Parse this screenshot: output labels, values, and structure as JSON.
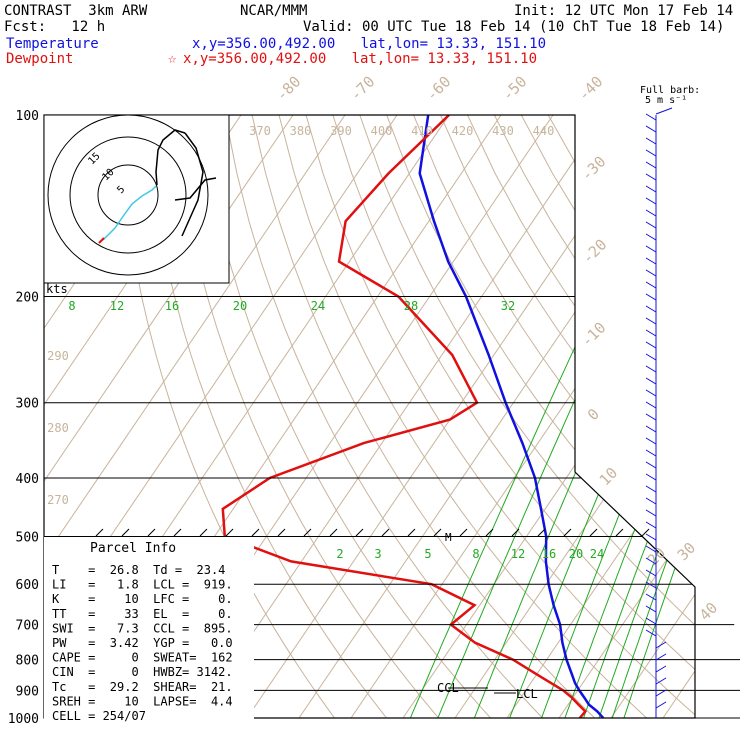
{
  "header": {
    "title_left": "CONTRAST  3km ARW",
    "title_center": "NCAR/MMM",
    "init": "Init: 12 UTC Mon 17 Feb 14",
    "fcst": "Fcst:   12 h",
    "valid": "Valid: 00 UTC Tue 18 Feb 14 (10 ChT Tue 18 Feb 14)",
    "temperature_label": "Temperature",
    "temperature_loc": "x,y=356.00,492.00   lat,lon= 13.33, 151.10",
    "dewpoint_label": "Dewpoint",
    "dewpoint_loc": "x,y=356.00,492.00   lat,lon= 13.33, 151.10",
    "barb_legend_title": "Full barb:",
    "barb_legend_value": "5 m s⁻¹",
    "hodograph_units": "kts"
  },
  "colors": {
    "temperature": "#1010e0",
    "dewpoint": "#e01010",
    "mixing_ratio": "#22aa22",
    "isotherm": "#c8b49c",
    "frame": "#000000",
    "hodo_path": "#40c8e8"
  },
  "chart_data": {
    "type": "line",
    "chart_kind": "skew-T log-p sounding",
    "y_axis": {
      "scale": "log",
      "unit": "hPa",
      "range": [
        1000,
        100
      ],
      "ticks": [
        "100",
        "200",
        "300",
        "400",
        "500",
        "600",
        "700",
        "800",
        "900",
        "1000"
      ]
    },
    "isotherm_labels": [
      "-80",
      "-70",
      "-60",
      "-50",
      "-40",
      "-30",
      "-20",
      "-10",
      "0",
      "10",
      "20",
      "30",
      "40"
    ],
    "theta_labels_top": [
      "370",
      "380",
      "390",
      "400",
      "410",
      "420",
      "430",
      "440"
    ],
    "theta_labels_left": [
      "290",
      "280",
      "270"
    ],
    "mixing_ratio_labels_upper": [
      "8",
      "12",
      "16",
      "20",
      "24",
      "28",
      "32"
    ],
    "mixing_ratio_labels_lower": [
      "2",
      "3",
      "5",
      "8",
      "12",
      "16",
      "20",
      "24"
    ],
    "series": [
      {
        "name": "Temperature",
        "profile": [
          {
            "p": 1000,
            "t": 28.5
          },
          {
            "p": 975,
            "t": 26.5
          },
          {
            "p": 950,
            "t": 24.0
          },
          {
            "p": 925,
            "t": 22.2
          },
          {
            "p": 900,
            "t": 20.3
          },
          {
            "p": 875,
            "t": 18.5
          },
          {
            "p": 850,
            "t": 17.0
          },
          {
            "p": 800,
            "t": 13.8
          },
          {
            "p": 750,
            "t": 10.8
          },
          {
            "p": 700,
            "t": 8.0
          },
          {
            "p": 650,
            "t": 4.2
          },
          {
            "p": 600,
            "t": 0.5
          },
          {
            "p": 550,
            "t": -3.0
          },
          {
            "p": 500,
            "t": -6.2
          },
          {
            "p": 450,
            "t": -10.8
          },
          {
            "p": 400,
            "t": -16.0
          },
          {
            "p": 350,
            "t": -23.0
          },
          {
            "p": 300,
            "t": -31.5
          },
          {
            "p": 250,
            "t": -41.0
          },
          {
            "p": 200,
            "t": -53.0
          },
          {
            "p": 175,
            "t": -61.0
          },
          {
            "p": 150,
            "t": -69.0
          },
          {
            "p": 125,
            "t": -78.0
          },
          {
            "p": 100,
            "t": -84.0
          }
        ]
      },
      {
        "name": "Dewpoint",
        "profile": [
          {
            "p": 1000,
            "t": 24.0
          },
          {
            "p": 975,
            "t": 24.2
          },
          {
            "p": 950,
            "t": 22.0
          },
          {
            "p": 925,
            "t": 19.8
          },
          {
            "p": 900,
            "t": 17.2
          },
          {
            "p": 850,
            "t": 10.5
          },
          {
            "p": 800,
            "t": 3.5
          },
          {
            "p": 750,
            "t": -6.0
          },
          {
            "p": 700,
            "t": -13.0
          },
          {
            "p": 650,
            "t": -11.0
          },
          {
            "p": 600,
            "t": -22.0
          },
          {
            "p": 550,
            "t": -52.0
          },
          {
            "p": 500,
            "t": -68.0
          },
          {
            "p": 450,
            "t": -72.0
          },
          {
            "p": 400,
            "t": -67.0
          },
          {
            "p": 350,
            "t": -53.5
          },
          {
            "p": 320,
            "t": -40.0
          },
          {
            "p": 300,
            "t": -37.0
          },
          {
            "p": 250,
            "t": -48.0
          },
          {
            "p": 200,
            "t": -66.0
          },
          {
            "p": 175,
            "t": -82.0
          },
          {
            "p": 150,
            "t": -86.0
          },
          {
            "p": 125,
            "t": -84.0
          },
          {
            "p": 100,
            "t": -80.0
          }
        ]
      }
    ],
    "levels_marked": {
      "LCL": 919,
      "CCL": 895,
      "M": 500
    }
  },
  "parcel_info": {
    "title": "Parcel Info",
    "rows": [
      "T    =  26.8  Td =  23.4",
      "LI   =   1.8  LCL =  919.",
      "K    =    10  LFC =    0.",
      "TT   =    33  EL  =    0.",
      "SWI  =   7.3  CCL =  895.",
      "PW   =  3.42  YGP =   0.0",
      "CAPE =     0  SWEAT=  162",
      "CIN  =     0  HWBZ= 3142.",
      "Tc   =  29.2  SHEAR=  21.",
      "SREH =    10  LAPSE=  4.4",
      "CELL = 254/07"
    ]
  },
  "annotations": {
    "lcl": "LCL",
    "ccl": "CCL",
    "m": "M"
  },
  "hodograph": {
    "ring_labels": [
      "5",
      "10",
      "15"
    ]
  }
}
